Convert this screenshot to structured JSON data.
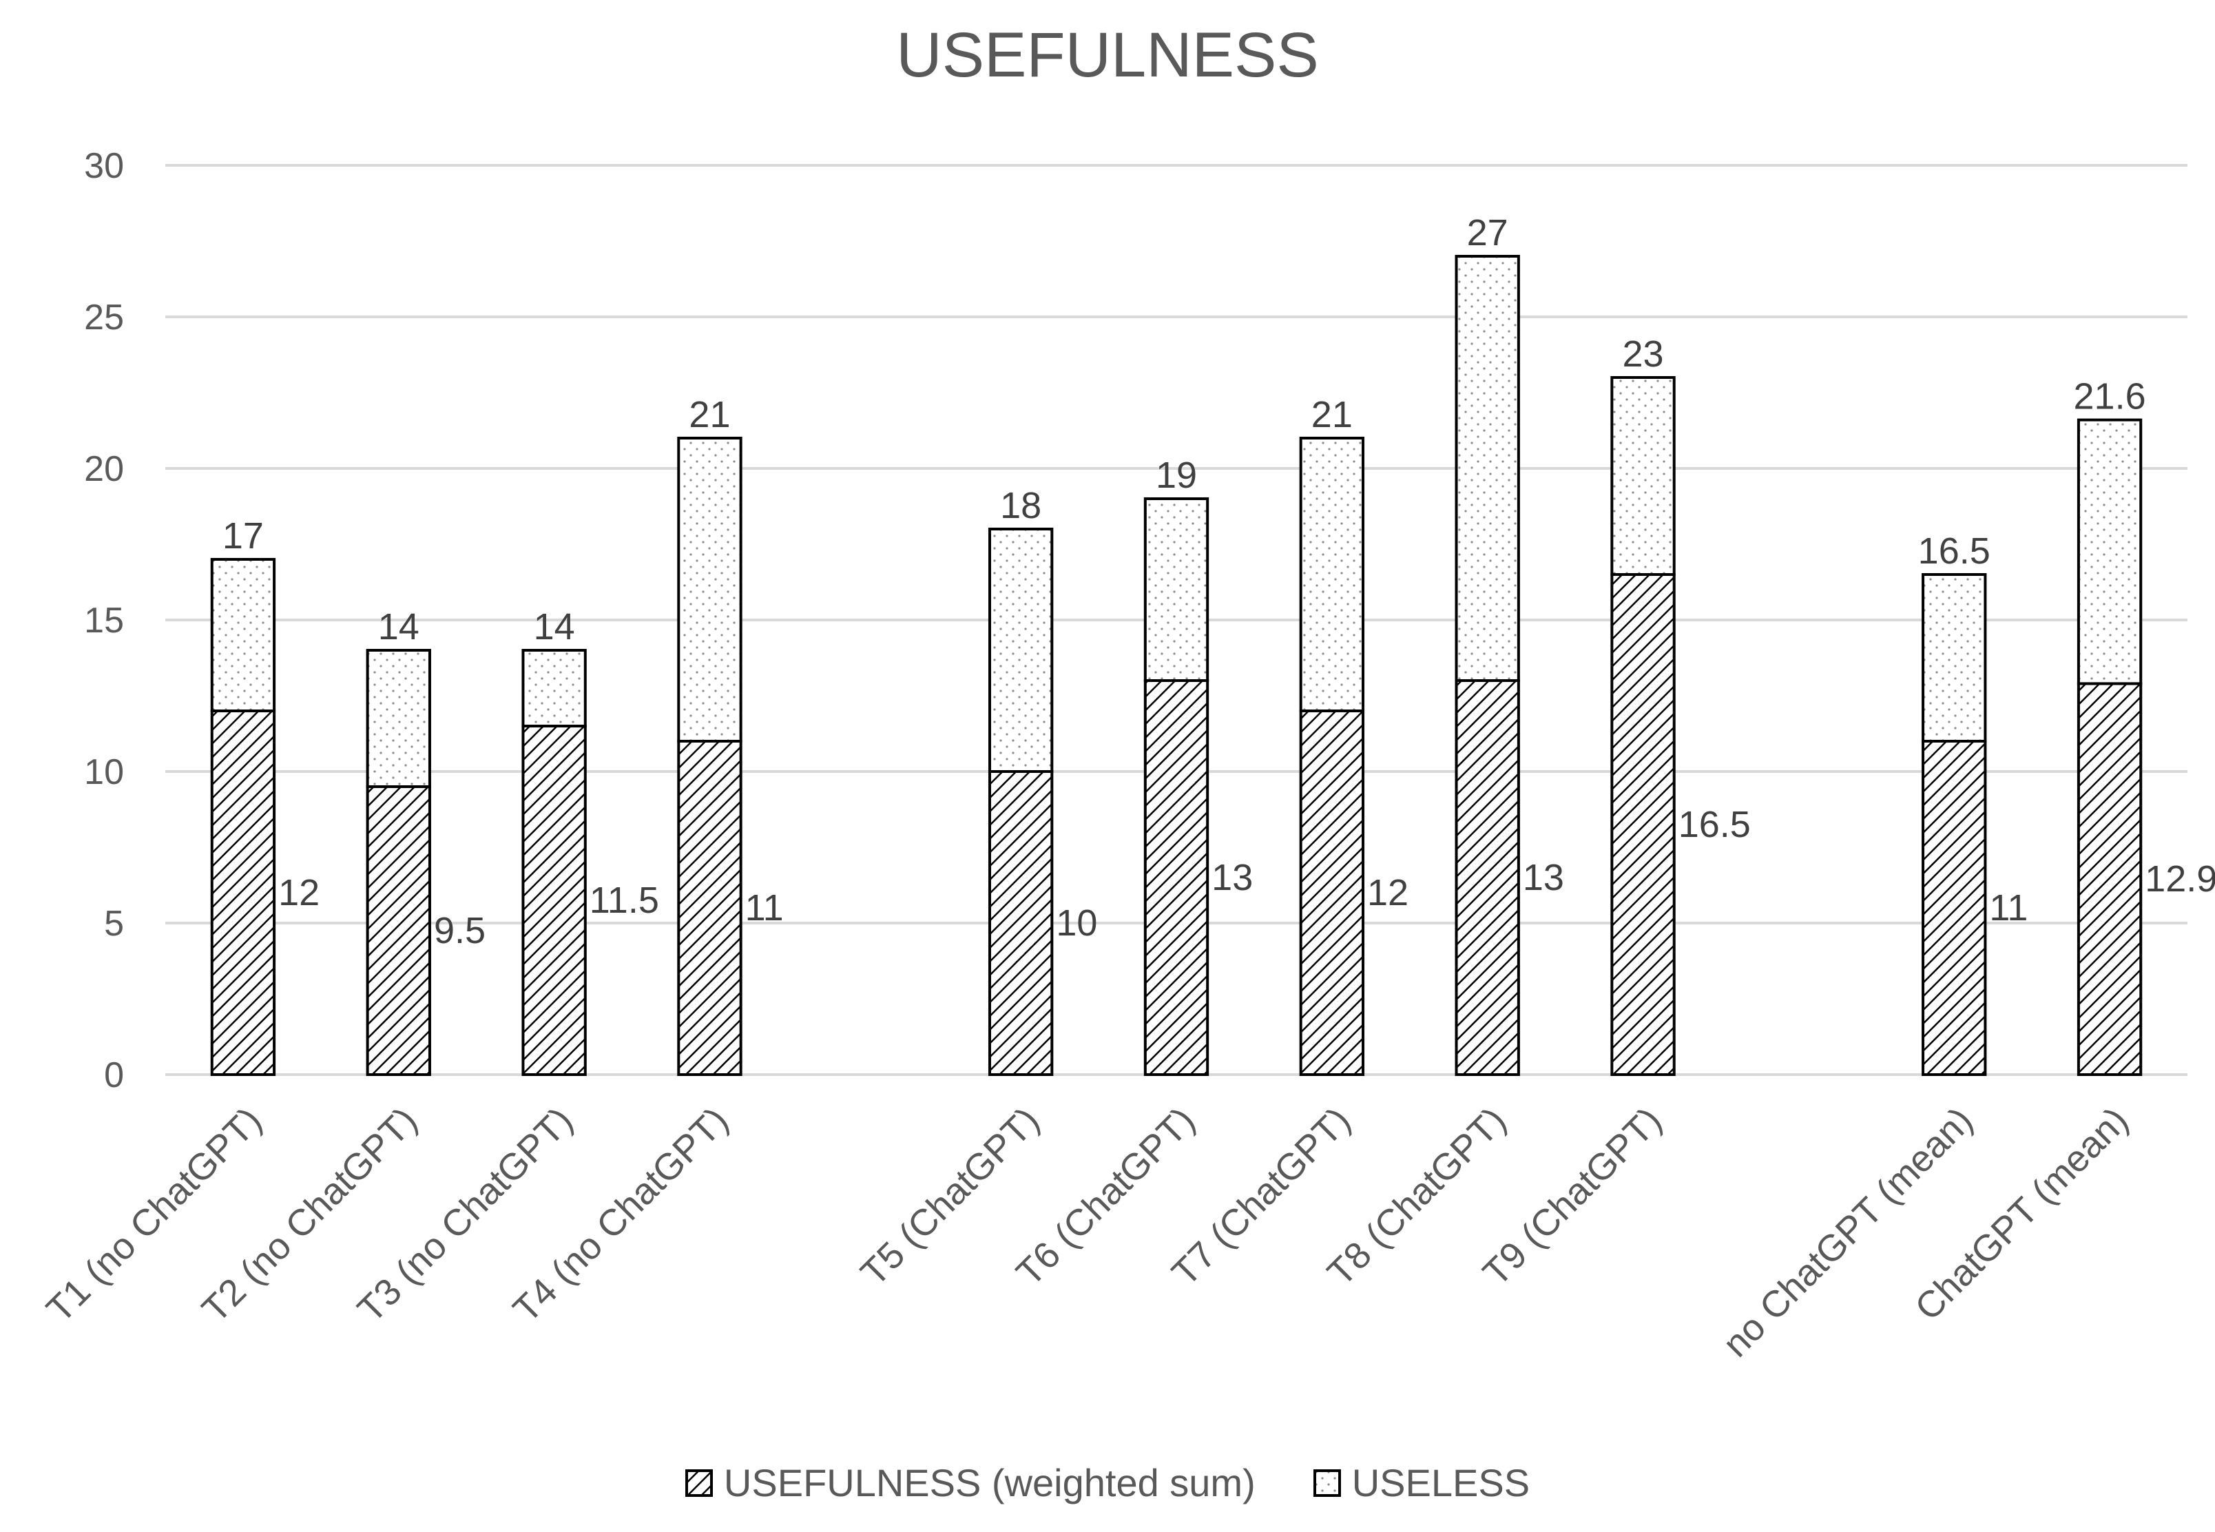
{
  "chart_data": {
    "type": "bar",
    "stacked": true,
    "title": "USEFULNESS",
    "xlabel": "",
    "ylabel": "",
    "ylim": [
      0,
      30
    ],
    "yticks": [
      0,
      5,
      10,
      15,
      20,
      25,
      30
    ],
    "grid": true,
    "legend_position": "bottom",
    "categories": [
      "T1 (no ChatGPT)",
      "T2 (no ChatGPT)",
      "T3 (no ChatGPT)",
      "T4 (no ChatGPT)",
      "",
      "T5 (ChatGPT)",
      "T6 (ChatGPT)",
      "T7 (ChatGPT)",
      "T8 (ChatGPT)",
      "T9 (ChatGPT)",
      "",
      "no ChatGPT (mean)",
      "ChatGPT (mean)"
    ],
    "series": [
      {
        "name": "USEFULNESS (weighted sum)",
        "pattern": "diagonal-hatch",
        "values": [
          12,
          9.5,
          11.5,
          11,
          null,
          10,
          13,
          12,
          13,
          16.5,
          null,
          11,
          12.9
        ],
        "labels": [
          "12",
          "9.5",
          "11.5",
          "11",
          "",
          "10",
          "13",
          "12",
          "13",
          "16.5",
          "",
          "11",
          "12.9"
        ]
      },
      {
        "name": "USELESS",
        "pattern": "dotted",
        "values": [
          5,
          4.5,
          2.5,
          10,
          null,
          8,
          6,
          9,
          14,
          6.5,
          null,
          5.5,
          8.7
        ]
      }
    ],
    "totals": [
      17,
      14,
      14,
      21,
      null,
      18,
      19,
      21,
      27,
      23,
      null,
      16.5,
      21.6
    ],
    "total_labels": [
      "17",
      "14",
      "14",
      "21",
      "",
      "18",
      "19",
      "21",
      "27",
      "23",
      "",
      "16.5",
      "21.6"
    ],
    "colors": {
      "grid": "#d9d9d9",
      "text": "#595959",
      "bar_stroke": "#000000",
      "axis": "#d9d9d9"
    }
  }
}
